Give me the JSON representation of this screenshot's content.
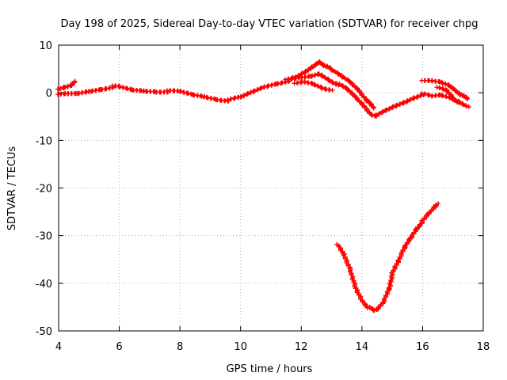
{
  "chart_data": {
    "type": "scatter",
    "title": "Day 198 of 2025, Sidereal Day-to-day VTEC variation (SDTVAR) for receiver chpg",
    "xlabel": "GPS time / hours",
    "ylabel": "SDTVAR / TECUs",
    "xlim": [
      4,
      18
    ],
    "ylim": [
      -50,
      10
    ],
    "xticks": [
      4,
      6,
      8,
      10,
      12,
      14,
      16,
      18
    ],
    "yticks": [
      -50,
      -40,
      -30,
      -20,
      -10,
      0,
      10
    ],
    "grid": true,
    "marker": "plus",
    "color": "#ff0000",
    "series": [
      {
        "name": "main",
        "x": [
          4.0,
          4.3,
          4.6,
          5.0,
          5.4,
          5.8,
          6.0,
          6.4,
          6.8,
          7.2,
          7.6,
          8.0,
          8.4,
          8.8,
          9.2,
          9.6,
          10.0,
          10.4,
          10.8,
          11.2,
          11.6,
          12.0,
          12.3,
          12.6,
          12.9,
          13.2,
          13.5,
          13.8,
          14.1,
          14.3,
          14.5,
          14.8,
          15.1,
          15.4,
          15.7,
          16.0,
          16.3,
          16.6,
          16.9,
          17.2,
          17.5
        ],
        "y": [
          -0.5,
          -0.3,
          -0.2,
          0.3,
          0.8,
          1.3,
          1.2,
          0.6,
          0.4,
          0.3,
          0.3,
          0.2,
          -0.4,
          -0.8,
          -1.3,
          -1.6,
          -1.0,
          0.2,
          1.3,
          2.0,
          2.6,
          3.1,
          3.4,
          4.0,
          2.8,
          1.8,
          0.8,
          -1.0,
          -3.0,
          -4.5,
          -4.8,
          -3.8,
          -2.8,
          -2.0,
          -1.0,
          -0.3,
          -0.8,
          -0.5,
          -1.0,
          -1.8,
          -2.8
        ]
      },
      {
        "name": "upper-branch",
        "x": [
          11.5,
          11.8,
          12.1,
          12.4,
          12.6,
          12.8,
          13.0,
          13.3,
          13.6,
          13.9,
          14.2,
          14.4
        ],
        "y": [
          2.6,
          3.1,
          4.2,
          5.6,
          6.6,
          5.6,
          4.8,
          3.6,
          2.4,
          0.6,
          -1.8,
          -3.4
        ]
      },
      {
        "name": "lower-branch",
        "x": [
          11.8,
          12.1,
          12.4,
          12.7,
          13.0
        ],
        "y": [
          1.8,
          2.2,
          1.8,
          1.0,
          0.6
        ]
      },
      {
        "name": "early-tail",
        "x": [
          4.0,
          4.2,
          4.4,
          4.55
        ],
        "y": [
          0.6,
          1.0,
          1.5,
          2.4
        ]
      },
      {
        "name": "late-upper",
        "x": [
          16.0,
          16.3,
          16.6,
          16.9,
          17.1,
          17.3,
          17.5
        ],
        "y": [
          2.4,
          2.4,
          2.2,
          1.5,
          0.5,
          -0.5,
          -1.5
        ]
      },
      {
        "name": "late-drop",
        "x": [
          16.5,
          16.8,
          17.0,
          17.2
        ],
        "y": [
          1.0,
          0.4,
          -1.2,
          -2.2
        ]
      },
      {
        "name": "dip-arc",
        "x": [
          13.2,
          13.4,
          13.6,
          13.8,
          14.0,
          14.2,
          14.4,
          14.5,
          14.7,
          14.9,
          15.0,
          15.2,
          15.4,
          15.6,
          15.8,
          16.0,
          16.2,
          16.4,
          16.5
        ],
        "y": [
          -32.0,
          -34.0,
          -37.0,
          -41.0,
          -43.5,
          -45.0,
          -45.8,
          -45.5,
          -44.0,
          -41.0,
          -38.0,
          -35.5,
          -32.5,
          -30.5,
          -28.5,
          -27.0,
          -25.5,
          -24.0,
          -23.3
        ]
      }
    ]
  }
}
